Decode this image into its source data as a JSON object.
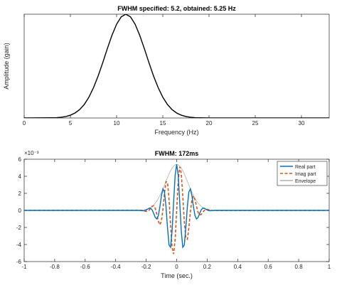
{
  "chart_data": [
    {
      "type": "line",
      "title": "FWHM specified: 5.2, obtained: 5.25 Hz",
      "x_label": "Frequency (Hz)",
      "y_label": "Amplitude (gain)",
      "x": [
        0,
        3,
        3.5,
        4,
        4.5,
        5,
        5.5,
        6,
        6.5,
        7,
        7.5,
        8,
        8.5,
        9,
        9.5,
        10,
        10.5,
        11,
        11.5,
        12,
        12.5,
        13,
        13.5,
        14,
        14.5,
        15,
        15.5,
        16,
        16.5,
        17,
        17.5,
        18,
        18.5,
        19,
        20,
        33
      ],
      "values": [
        0,
        0.002,
        0.003,
        0.007,
        0.014,
        0.027,
        0.048,
        0.081,
        0.13,
        0.2,
        0.292,
        0.404,
        0.533,
        0.669,
        0.797,
        0.904,
        0.975,
        1,
        0.975,
        0.904,
        0.797,
        0.669,
        0.533,
        0.404,
        0.292,
        0.2,
        0.13,
        0.081,
        0.048,
        0.027,
        0.014,
        0.007,
        0.003,
        0.002,
        0,
        0
      ],
      "color": "#000000",
      "xlim": [
        0,
        33
      ],
      "xticks": [
        0,
        5,
        10,
        15,
        20,
        25,
        30
      ],
      "ylim": [
        0,
        1
      ]
    },
    {
      "type": "line",
      "title": "FWHM: 172ms",
      "x_label": "Time (sec.)",
      "axis_exponent": "×10⁻³",
      "legend": "upper right",
      "x": [
        -1,
        -0.25,
        -0.24,
        -0.23,
        -0.22,
        -0.21,
        -0.2,
        -0.19,
        -0.18,
        -0.17,
        -0.16,
        -0.15,
        -0.14,
        -0.13,
        -0.12,
        -0.11,
        -0.1,
        -0.09,
        -0.08,
        -0.07,
        -0.06,
        -0.05,
        -0.04,
        -0.03,
        -0.02,
        -0.01,
        0,
        0.01,
        0.02,
        0.03,
        0.04,
        0.05,
        0.06,
        0.07,
        0.08,
        0.09,
        0.1,
        0.11,
        0.12,
        0.13,
        0.14,
        0.15,
        0.16,
        0.17,
        0.18,
        0.19,
        0.2,
        0.21,
        0.22,
        0.23,
        0.24,
        0.25,
        1
      ],
      "series": [
        {
          "name": "Real part",
          "color": "#0072bd",
          "linestyle": "solid",
          "values": [
            0,
            0,
            -1e-05,
            -4e-05,
            -5e-05,
            -3e-05,
            4e-05,
            0.00015,
            0.00026,
            0.00025,
            3e-05,
            -0.00039,
            -0.00083,
            -0.001,
            -0.0006,
            0.00043,
            0.00172,
            0.00252,
            0.00216,
            0.00043,
            -0.00206,
            -0.00406,
            -0.00432,
            -0.00239,
            0.00097,
            0.00412,
            0.0054,
            0.00412,
            0.00097,
            -0.00239,
            -0.00432,
            -0.00406,
            -0.00206,
            0.00043,
            0.00216,
            0.00252,
            0.00172,
            0.00043,
            -0.0006,
            -0.001,
            -0.00083,
            -0.00039,
            3e-05,
            0.00025,
            0.00026,
            0.00015,
            4e-05,
            -3e-05,
            -5e-05,
            -4e-05,
            -1e-05,
            0,
            0
          ]
        },
        {
          "name": "Imag part",
          "color": "#d95319",
          "linestyle": "dashed",
          "values": [
            0,
            2e-05,
            2e-05,
            1e-05,
            -3e-05,
            -8e-05,
            -0.00012,
            -0.0001,
            3e-05,
            0.00026,
            0.00049,
            0.00053,
            0.00021,
            -0.00047,
            -0.00127,
            -0.00169,
            -0.00125,
            0.00016,
            0.00203,
            0.00338,
            0.00325,
            0.00132,
            -0.00171,
            -0.00435,
            -0.00511,
            -0.00341,
            0,
            0.00341,
            0.00511,
            0.00435,
            0.00171,
            -0.00132,
            -0.00325,
            -0.00338,
            -0.00203,
            -0.00016,
            0.00125,
            0.00169,
            0.00127,
            0.00047,
            -0.00021,
            -0.00053,
            -0.00049,
            -0.00026,
            -3e-05,
            0.0001,
            0.00012,
            8e-05,
            3e-05,
            -1e-05,
            -2e-05,
            -2e-05,
            0
          ]
        },
        {
          "name": "Envelope",
          "color": "#b0b0b0",
          "linestyle": "solid",
          "values": [
            0,
            2e-05,
            2e-05,
            4e-05,
            6e-05,
            9e-05,
            0.00013,
            0.00018,
            0.00026,
            0.00036,
            0.00049,
            0.00066,
            0.00086,
            0.00111,
            0.0014,
            0.00174,
            0.00212,
            0.00253,
            0.00296,
            0.00341,
            0.00385,
            0.00427,
            0.00465,
            0.00496,
            0.0052,
            0.00535,
            0.0054,
            0.00535,
            0.0052,
            0.00496,
            0.00465,
            0.00427,
            0.00385,
            0.00341,
            0.00296,
            0.00253,
            0.00212,
            0.00174,
            0.0014,
            0.00111,
            0.00086,
            0.00066,
            0.00049,
            0.00036,
            0.00026,
            0.00018,
            0.00013,
            9e-05,
            6e-05,
            4e-05,
            2e-05,
            2e-05,
            0
          ]
        }
      ],
      "xlim": [
        -1,
        1
      ],
      "xticks": [
        -1,
        -0.8,
        -0.6,
        -0.4,
        -0.2,
        0,
        0.2,
        0.4,
        0.6,
        0.8,
        1
      ],
      "ylim": [
        -0.006,
        0.006
      ],
      "yticks": [
        {
          "value": -0.006,
          "label": "-6"
        },
        {
          "value": -0.004,
          "label": "-4"
        },
        {
          "value": -0.002,
          "label": "-2"
        },
        {
          "value": 0,
          "label": "0"
        },
        {
          "value": 0.002,
          "label": "2"
        },
        {
          "value": 0.004,
          "label": "4"
        },
        {
          "value": 0.006,
          "label": "6"
        }
      ]
    }
  ]
}
